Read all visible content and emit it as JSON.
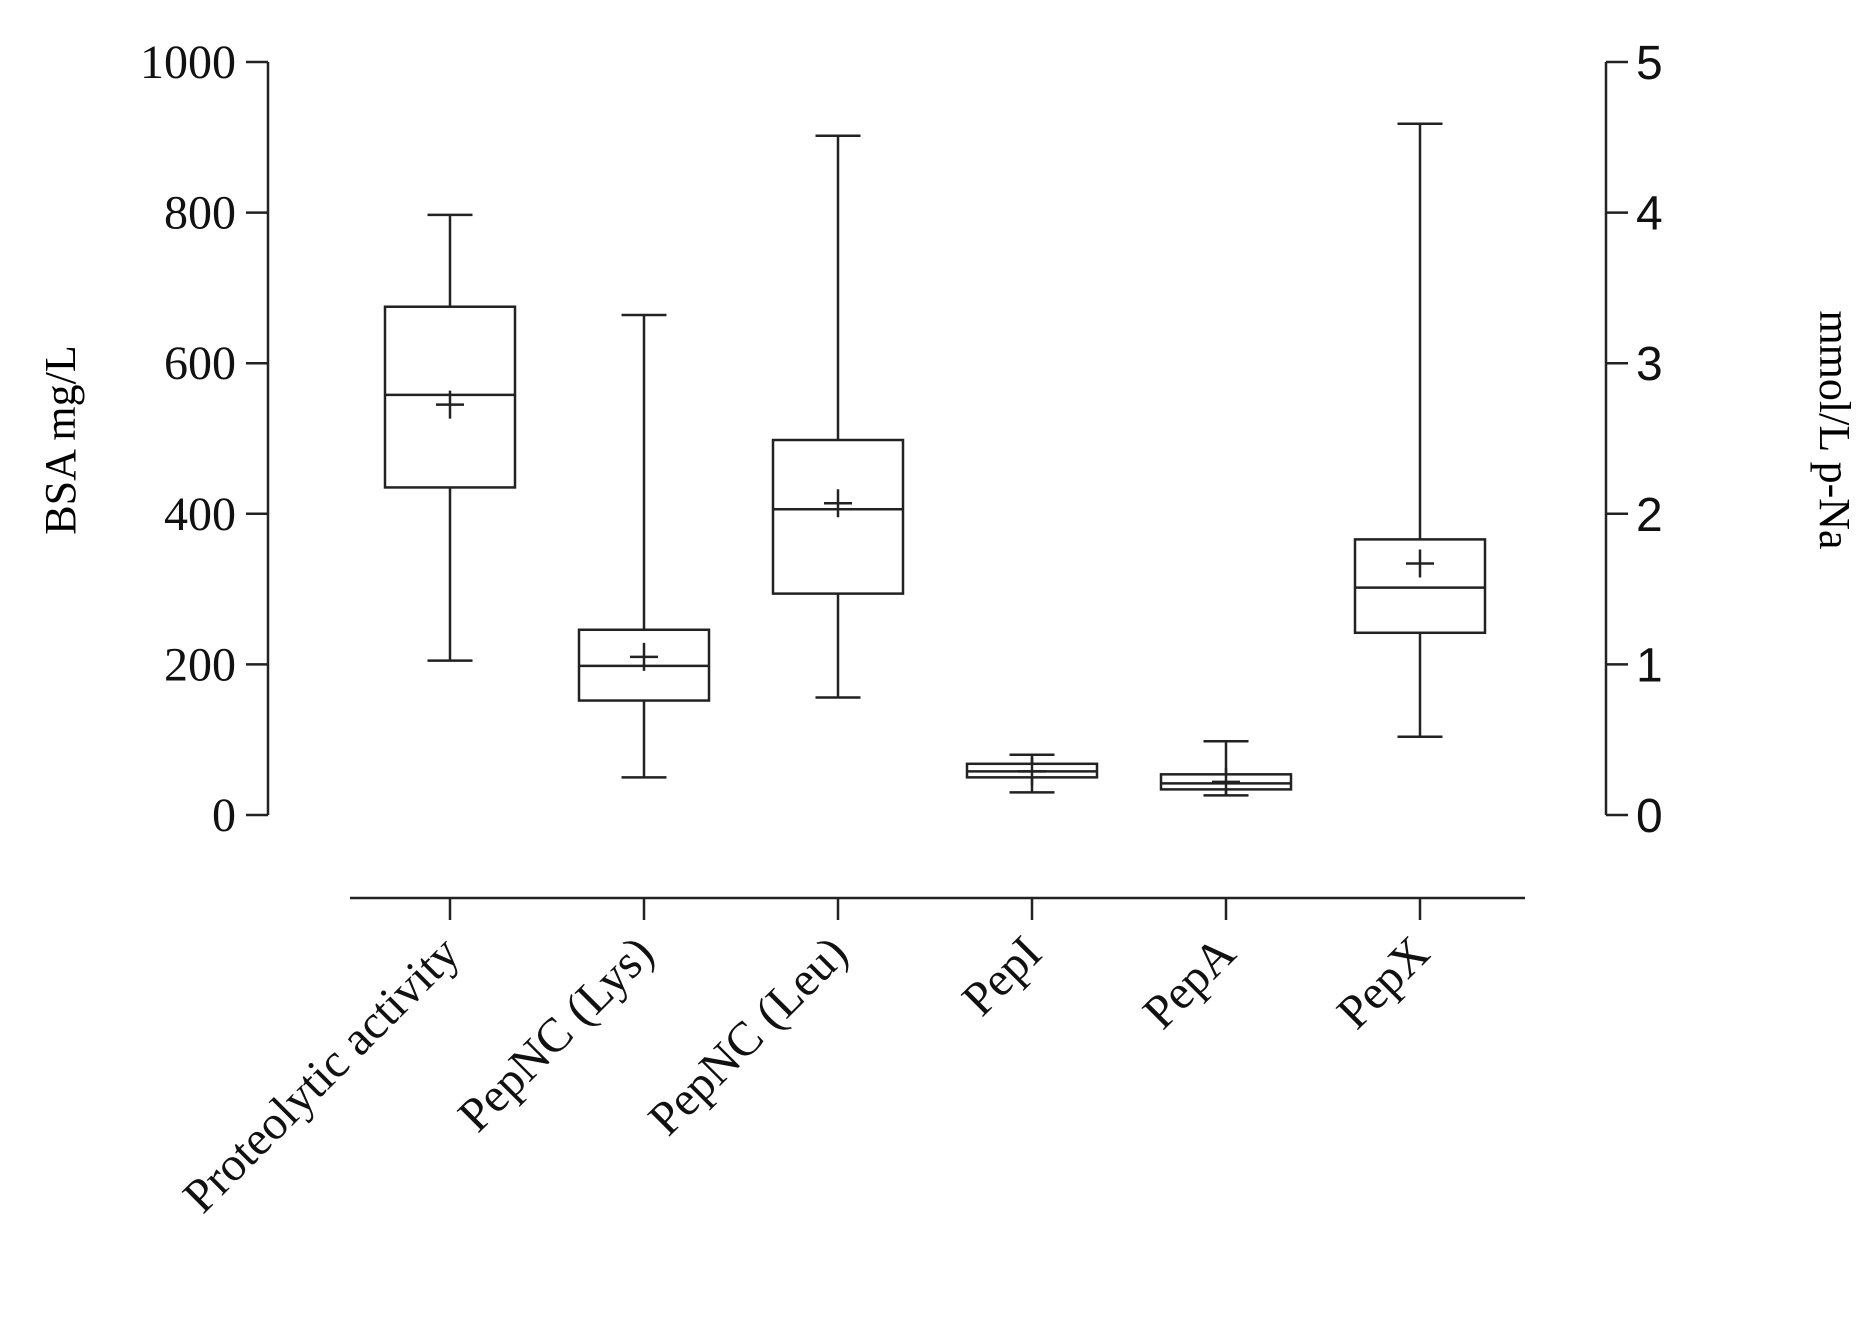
{
  "chart_data": {
    "type": "box",
    "categories": [
      "Proteolytic activity",
      "PepNC (Lys)",
      "PepNC (Leu)",
      "PepI",
      "PepA",
      "PepX"
    ],
    "left_axis": {
      "label": "BSA mg/L",
      "range": [
        0,
        1000
      ],
      "ticks": [
        "0",
        "200",
        "400",
        "600",
        "800",
        "1000"
      ]
    },
    "right_axis": {
      "label": "mmol/L p-Na",
      "range": [
        0,
        5
      ],
      "ticks": [
        "0",
        "1",
        "2",
        "3",
        "4",
        "5"
      ]
    },
    "series": [
      {
        "category": "Proteolytic activity",
        "axis": "left",
        "min": 205,
        "q1": 435,
        "median": 558,
        "q3": 675,
        "max": 797,
        "mean": 545
      },
      {
        "category": "PepNC (Lys)",
        "axis": "right",
        "min": 0.25,
        "q1": 0.76,
        "median": 0.99,
        "q3": 1.23,
        "max": 3.32,
        "mean": 1.05
      },
      {
        "category": "PepNC (Leu)",
        "axis": "right",
        "min": 0.78,
        "q1": 1.47,
        "median": 2.03,
        "q3": 2.49,
        "max": 4.51,
        "mean": 2.07
      },
      {
        "category": "PepI",
        "axis": "right",
        "min": 0.15,
        "q1": 0.25,
        "median": 0.29,
        "q3": 0.34,
        "max": 0.4,
        "mean": 0.29
      },
      {
        "category": "PepA",
        "axis": "right",
        "min": 0.13,
        "q1": 0.17,
        "median": 0.21,
        "q3": 0.27,
        "max": 0.49,
        "mean": 0.22
      },
      {
        "category": "PepX",
        "axis": "right",
        "min": 0.52,
        "q1": 1.21,
        "median": 1.51,
        "q3": 1.83,
        "max": 4.59,
        "mean": 1.67
      }
    ]
  }
}
